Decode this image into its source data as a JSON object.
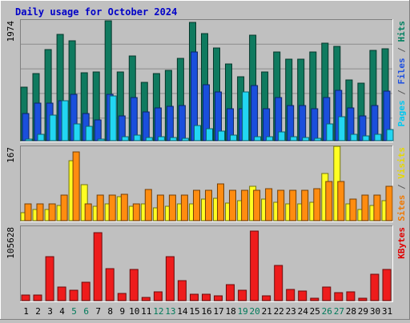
{
  "chart_data": {
    "type": "bar",
    "title": "Daily usage for October 2024",
    "categories": [
      "1",
      "2",
      "3",
      "4",
      "5",
      "6",
      "7",
      "8",
      "9",
      "10",
      "11",
      "12",
      "13",
      "14",
      "15",
      "16",
      "17",
      "18",
      "19",
      "20",
      "21",
      "22",
      "23",
      "24",
      "25",
      "26",
      "27",
      "28",
      "29",
      "30",
      "31"
    ],
    "weekend_days": [
      "5",
      "6",
      "12",
      "13",
      "19",
      "20",
      "26",
      "27"
    ],
    "grid": true,
    "panels": [
      {
        "id": "hits-files-pages",
        "max_label": "1974",
        "ylim": [
          0,
          1974
        ],
        "legend": [
          {
            "text": "Pages",
            "color": "#00c8f0"
          },
          {
            "text": " / ",
            "color": "#5a5a5a"
          },
          {
            "text": "Files",
            "color": "#1c4fe0"
          },
          {
            "text": " / ",
            "color": "#5a5a5a"
          },
          {
            "text": "Hits",
            "color": "#008060"
          }
        ],
        "series": [
          {
            "name": "Hits",
            "color": "#0f7a5f",
            "values": [
              880,
              1100,
              1490,
              1740,
              1640,
              1110,
              1120,
              1960,
              1130,
              1390,
              950,
              1100,
              1150,
              1350,
              1940,
              1750,
              1510,
              1250,
              1050,
              1730,
              1130,
              1450,
              1330,
              1330,
              1450,
              1600,
              1540,
              1000,
              940,
              1480,
              1500
            ]
          },
          {
            "name": "Files",
            "color": "#1a4fdc",
            "values": [
              440,
              620,
              610,
              650,
              760,
              450,
              340,
              760,
              400,
              700,
              470,
              540,
              560,
              580,
              1450,
              920,
              800,
              520,
              520,
              900,
              520,
              700,
              580,
              580,
              520,
              700,
              830,
              540,
              400,
              580,
              810
            ]
          },
          {
            "name": "Pages",
            "color": "#22d6f2",
            "values": [
              20,
              110,
              420,
              650,
              280,
              240,
              30,
              730,
              70,
              90,
              50,
              60,
              50,
              40,
              250,
              200,
              160,
              90,
              800,
              60,
              60,
              140,
              70,
              50,
              40,
              270,
              390,
              100,
              80,
              110,
              180
            ]
          }
        ]
      },
      {
        "id": "visits-sites",
        "max_label": "167",
        "ylim": [
          0,
          167
        ],
        "legend": [
          {
            "text": "Sites",
            "color": "#f07800"
          },
          {
            "text": " / ",
            "color": "#5a5a5a"
          },
          {
            "text": "Visits",
            "color": "#e6d800"
          }
        ],
        "series": [
          {
            "name": "Visits",
            "color": "#ffff22",
            "values": [
              18,
              25,
              25,
              35,
              135,
              80,
              32,
              38,
              54,
              32,
              38,
              28,
              32,
              38,
              38,
              49,
              50,
              40,
              45,
              78,
              48,
              42,
              38,
              38,
              42,
              106,
              167,
              38,
              25,
              35,
              45
            ]
          },
          {
            "name": "Sites",
            "color": "#ff8c10",
            "values": [
              38,
              38,
              38,
              58,
              155,
              38,
              58,
              58,
              60,
              38,
              70,
              58,
              58,
              58,
              68,
              68,
              82,
              68,
              68,
              68,
              72,
              68,
              68,
              68,
              72,
              88,
              88,
              48,
              58,
              58,
              78
            ]
          }
        ]
      },
      {
        "id": "kbytes",
        "max_label": "105628",
        "ylim": [
          0,
          105628
        ],
        "legend": [
          {
            "text": "KBytes",
            "color": "#e00000"
          }
        ],
        "series": [
          {
            "name": "KBytes",
            "color": "#ee1c1c",
            "values": [
              8000,
              8000,
              63000,
              19000,
              15000,
              26000,
              97000,
              45000,
              10000,
              44000,
              4000,
              13000,
              62000,
              28000,
              9000,
              9000,
              7000,
              23000,
              15000,
              99000,
              7000,
              50000,
              16000,
              14000,
              3000,
              19000,
              11000,
              12000,
              3000,
              38000,
              44000
            ]
          }
        ]
      }
    ]
  }
}
